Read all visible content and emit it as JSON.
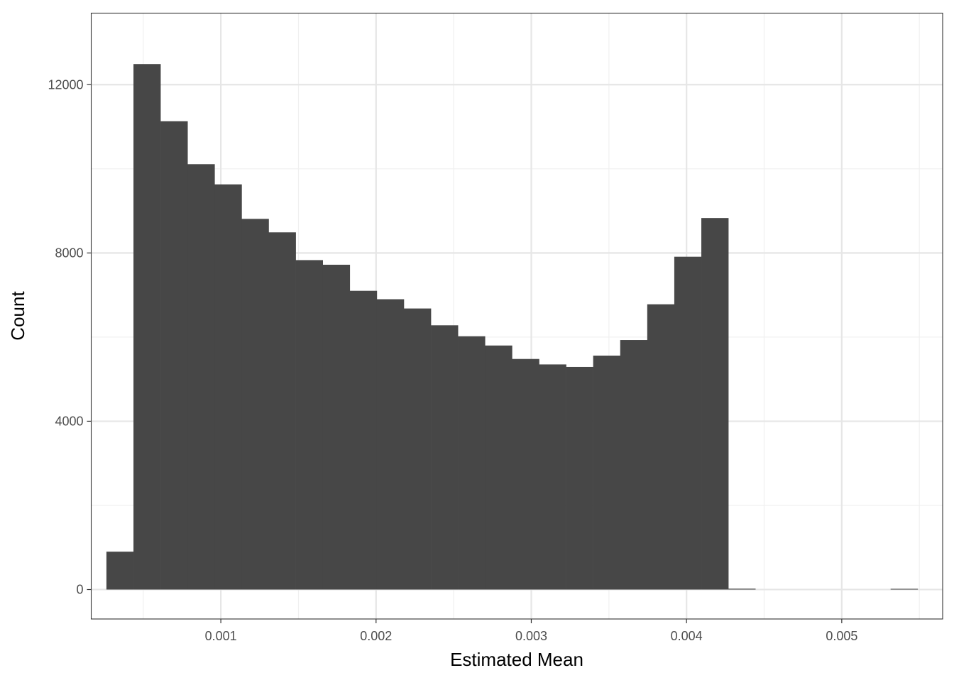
{
  "chart_data": {
    "type": "bar",
    "subtype": "histogram",
    "title": "",
    "xlabel": "Estimated Mean",
    "ylabel": "Count",
    "xlim": [
      0.000165,
      0.00565
    ],
    "ylim": [
      -700,
      13700
    ],
    "x_ticks": [
      0.001,
      0.002,
      0.003,
      0.004,
      0.005
    ],
    "x_tick_labels": [
      "0.001",
      "0.002",
      "0.003",
      "0.004",
      "0.005"
    ],
    "y_ticks": [
      0,
      4000,
      8000,
      12000
    ],
    "y_tick_labels": [
      "0",
      "4000",
      "8000",
      "12000"
    ],
    "grid": true,
    "theme": "bw",
    "bar_color": "#474747",
    "bin_start": 0.000263,
    "bin_width": 0.0001742,
    "values": [
      900,
      12490,
      11130,
      10110,
      9630,
      8810,
      8490,
      7830,
      7720,
      7100,
      6900,
      6680,
      6280,
      6020,
      5800,
      5480,
      5350,
      5290,
      5560,
      5930,
      6780,
      7910,
      8830,
      20,
      0,
      0,
      0,
      0,
      0,
      8
    ]
  }
}
